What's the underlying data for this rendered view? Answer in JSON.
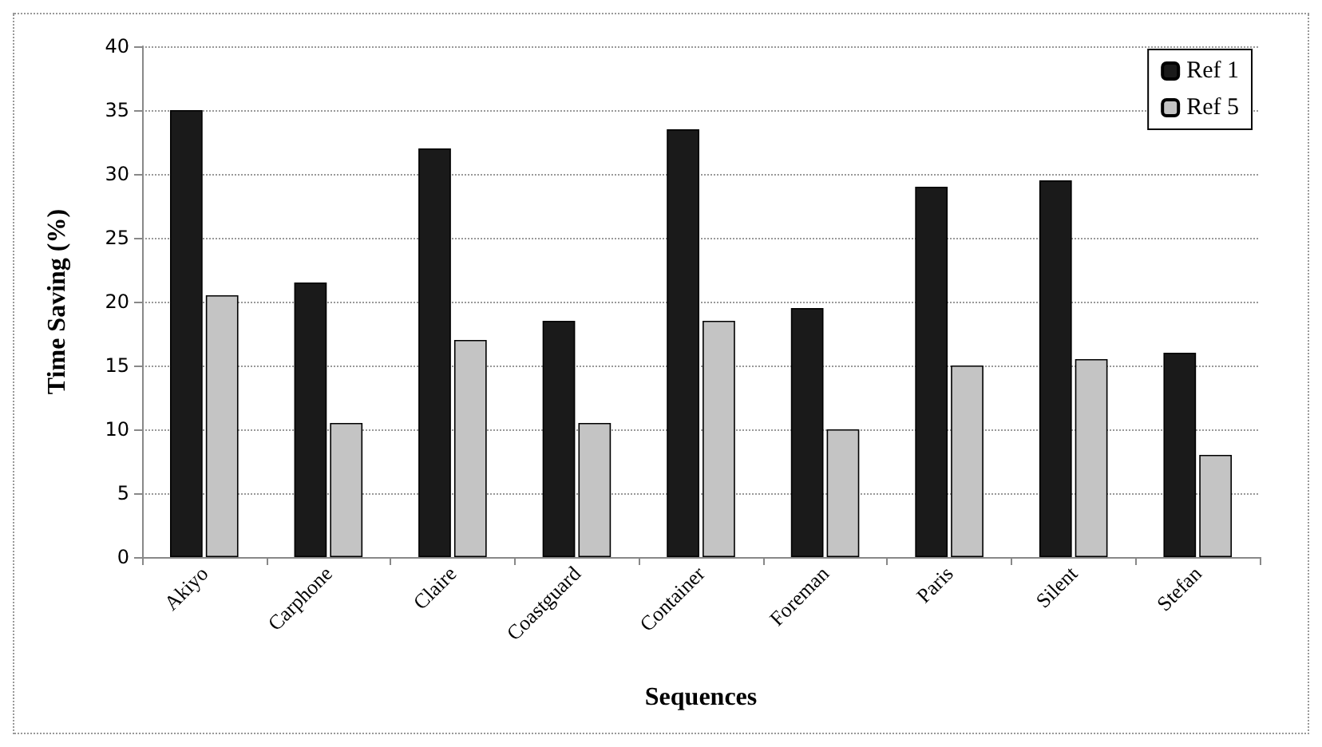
{
  "chart_data": {
    "type": "bar",
    "xlabel": "Sequences",
    "ylabel": "Time Saving (%)",
    "categories": [
      "Akiyo",
      "Carphone",
      "Claire",
      "Coastguard",
      "Container",
      "Foreman",
      "Paris",
      "Silent",
      "Stefan"
    ],
    "series": [
      {
        "name": "Ref 1",
        "color": "#1a1a1a",
        "values": [
          35,
          21.5,
          32,
          18.5,
          33.5,
          19.5,
          29,
          29.5,
          16
        ]
      },
      {
        "name": "Ref 5",
        "color": "#c4c4c4",
        "values": [
          20.5,
          10.5,
          17,
          10.5,
          18.5,
          10,
          15,
          15.5,
          8
        ]
      }
    ],
    "ylim": [
      0,
      40
    ],
    "yticks": [
      0,
      5,
      10,
      15,
      20,
      25,
      30,
      35,
      40
    ],
    "grid": "y",
    "legend": "top right"
  }
}
